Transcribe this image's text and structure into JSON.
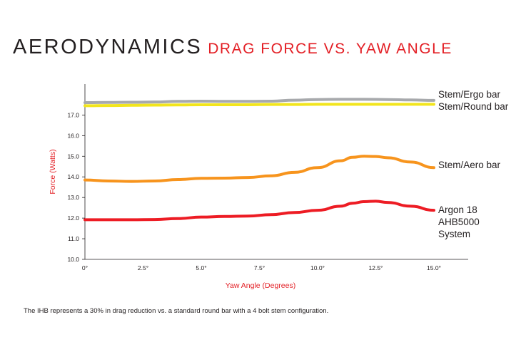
{
  "title": "AERODYNAMICS",
  "subtitle": "DRAG FORCE VS. YAW ANGLE",
  "footnote": "The IHB represents a 30% in drag reduction vs. a standard round bar with a 4 bolt stem configuration.",
  "colors": {
    "title": "#231f20",
    "accent": "#e31e24"
  },
  "chart_data": {
    "type": "line",
    "xlabel": "Yaw Angle (Degrees)",
    "ylabel": "Force (Watts)",
    "xlim": [
      0,
      15
    ],
    "ylim": [
      10,
      18.5
    ],
    "xticks": [
      0,
      2.5,
      5,
      7.5,
      10,
      12.5,
      15
    ],
    "xtick_labels": [
      "0°",
      "2.5°",
      "5.0°",
      "7.5°",
      "10.0°",
      "12.5°",
      "15.0°"
    ],
    "yticks": [
      10,
      11,
      12,
      13,
      14,
      15,
      16,
      17
    ],
    "ytick_labels": [
      "10.0",
      "11.0",
      "12.0",
      "13.0",
      "14.0",
      "15.0",
      "16.0",
      "17.0"
    ],
    "grid": false,
    "legend": "series labels at right end of lines",
    "series": [
      {
        "name": "Stem/Ergo bar",
        "label_lines": [
          "Stem/Ergo bar"
        ],
        "color": "#a7a9ac",
        "x": [
          0,
          1,
          2,
          3,
          4,
          5,
          6,
          7,
          8,
          9,
          10,
          11,
          12,
          13,
          14,
          15
        ],
        "y": [
          17.6,
          17.61,
          17.62,
          17.63,
          17.66,
          17.67,
          17.66,
          17.66,
          17.67,
          17.72,
          17.75,
          17.76,
          17.76,
          17.75,
          17.73,
          17.71
        ]
      },
      {
        "name": "Stem/Round bar",
        "label_lines": [
          "Stem/Round bar"
        ],
        "color": "#f2e51c",
        "x": [
          0,
          1,
          2,
          3,
          4,
          5,
          6,
          7,
          8,
          9,
          10,
          11,
          12,
          13,
          14,
          15
        ],
        "y": [
          17.45,
          17.46,
          17.47,
          17.48,
          17.49,
          17.5,
          17.5,
          17.5,
          17.51,
          17.51,
          17.52,
          17.52,
          17.52,
          17.52,
          17.52,
          17.52
        ]
      },
      {
        "name": "Stem/Aero bar",
        "label_lines": [
          "Stem/Aero bar"
        ],
        "color": "#f7941d",
        "x": [
          0,
          1,
          2,
          3,
          4,
          5,
          6,
          7,
          8,
          9,
          10,
          11,
          11.5,
          12,
          12.5,
          13,
          14,
          15
        ],
        "y": [
          13.85,
          13.8,
          13.78,
          13.8,
          13.87,
          13.93,
          13.94,
          13.97,
          14.05,
          14.22,
          14.45,
          14.78,
          14.95,
          15.0,
          14.99,
          14.93,
          14.72,
          14.45
        ]
      },
      {
        "name": "Argon 18 AHB5000 System",
        "label_lines": [
          "Argon 18",
          "AHB5000",
          "System"
        ],
        "color": "#ed1c24",
        "x": [
          0,
          1,
          2,
          3,
          4,
          5,
          6,
          7,
          8,
          9,
          10,
          11,
          11.5,
          12,
          12.5,
          13,
          14,
          15
        ],
        "y": [
          11.92,
          11.92,
          11.92,
          11.93,
          11.98,
          12.05,
          12.08,
          12.1,
          12.17,
          12.27,
          12.38,
          12.58,
          12.72,
          12.8,
          12.82,
          12.76,
          12.58,
          12.38
        ]
      }
    ]
  }
}
